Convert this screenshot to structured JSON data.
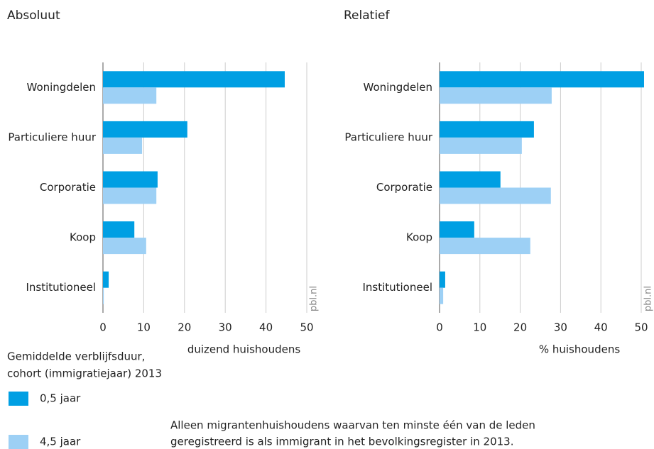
{
  "chart_data": [
    {
      "type": "hbar",
      "title": "Absoluut",
      "xlabel": "duizend huishoudens",
      "watermark": "pbl.nl",
      "categories": [
        "Woningdelen",
        "Particuliere huur",
        "Corporatie",
        "Koop",
        "Institutioneel"
      ],
      "series": [
        {
          "name": "0,5 jaar",
          "color": "#009fe3",
          "values": [
            44.6,
            20.7,
            13.4,
            7.7,
            1.4
          ]
        },
        {
          "name": "4,5 jaar",
          "color": "#9dd0f5",
          "values": [
            13.1,
            9.6,
            13.1,
            10.6,
            0.2
          ]
        }
      ],
      "xlim": [
        0,
        50
      ],
      "xticks": [
        0,
        10,
        20,
        30,
        40,
        50
      ],
      "grid": true,
      "legend_title": [
        "Gemiddelde verblijfsduur,",
        "cohort (immigratiejaar) 2013"
      ]
    },
    {
      "type": "hbar",
      "title": "Relatief",
      "xlabel": "% huishoudens",
      "watermark": "pbl.nl",
      "categories": [
        "Woningdelen",
        "Particuliere huur",
        "Corporatie",
        "Koop",
        "Institutioneel"
      ],
      "series": [
        {
          "name": "0,5 jaar",
          "color": "#009fe3",
          "values": [
            50.7,
            23.4,
            15.1,
            8.6,
            1.4
          ]
        },
        {
          "name": "4,5 jaar",
          "color": "#9dd0f5",
          "values": [
            27.8,
            20.4,
            27.6,
            22.5,
            0.9
          ]
        }
      ],
      "xlim": [
        0,
        50
      ],
      "xticks": [
        0,
        10,
        20,
        30,
        40,
        50
      ],
      "grid": true,
      "note": [
        "Alleen migrantenhuishoudens waarvan ten minste één van de leden",
        "geregistreerd is als immigrant in het bevolkingsregister in 2013."
      ]
    }
  ]
}
